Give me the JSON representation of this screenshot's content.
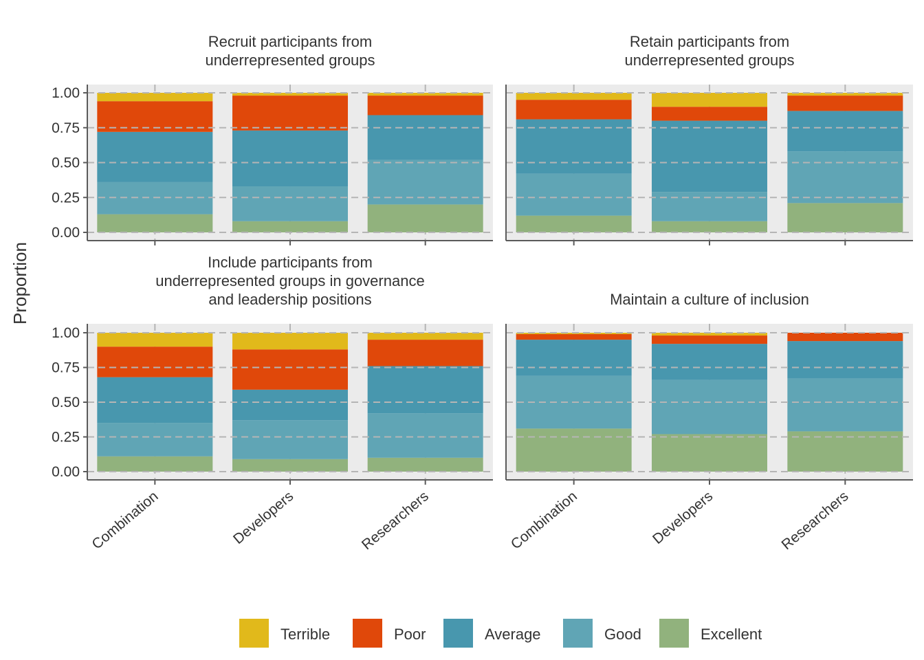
{
  "chart_data": {
    "type": "bar",
    "stacked": true,
    "ylabel": "Proportion",
    "xlabel": "",
    "ylim": [
      0,
      1
    ],
    "y_ticks": [
      "0.00",
      "0.25",
      "0.50",
      "0.75",
      "1.00"
    ],
    "categories": [
      "Combination",
      "Developers",
      "Researchers"
    ],
    "grid": true,
    "legend_position": "bottom",
    "legend": [
      {
        "name": "Terrible",
        "color": "#E1B91B"
      },
      {
        "name": "Poor",
        "color": "#E0480A"
      },
      {
        "name": "Average",
        "color": "#4897AE"
      },
      {
        "name": "Good",
        "color": "#60A5B5"
      },
      {
        "name": "Excellent",
        "color": "#91B27D"
      }
    ],
    "panels": [
      {
        "title_lines": [
          "Recruit participants from",
          "underrepresented groups"
        ],
        "series": [
          {
            "name": "Excellent",
            "values": [
              0.13,
              0.08,
              0.2
            ]
          },
          {
            "name": "Good",
            "values": [
              0.23,
              0.25,
              0.32
            ]
          },
          {
            "name": "Average",
            "values": [
              0.36,
              0.4,
              0.32
            ]
          },
          {
            "name": "Poor",
            "values": [
              0.22,
              0.25,
              0.14
            ]
          },
          {
            "name": "Terrible",
            "values": [
              0.06,
              0.02,
              0.02
            ]
          }
        ]
      },
      {
        "title_lines": [
          "Retain participants from",
          "underrepresented groups"
        ],
        "series": [
          {
            "name": "Excellent",
            "values": [
              0.12,
              0.08,
              0.21
            ]
          },
          {
            "name": "Good",
            "values": [
              0.3,
              0.21,
              0.37
            ]
          },
          {
            "name": "Average",
            "values": [
              0.39,
              0.51,
              0.29
            ]
          },
          {
            "name": "Poor",
            "values": [
              0.14,
              0.1,
              0.11
            ]
          },
          {
            "name": "Terrible",
            "values": [
              0.05,
              0.1,
              0.02
            ]
          }
        ]
      },
      {
        "title_lines": [
          "Include participants from",
          "underrepresented groups in governance",
          "and leadership positions"
        ],
        "series": [
          {
            "name": "Excellent",
            "values": [
              0.11,
              0.09,
              0.1
            ]
          },
          {
            "name": "Good",
            "values": [
              0.24,
              0.28,
              0.32
            ]
          },
          {
            "name": "Average",
            "values": [
              0.33,
              0.22,
              0.34
            ]
          },
          {
            "name": "Poor",
            "values": [
              0.22,
              0.29,
              0.19
            ]
          },
          {
            "name": "Terrible",
            "values": [
              0.1,
              0.12,
              0.05
            ]
          }
        ]
      },
      {
        "title_lines": [
          "Maintain a culture of inclusion"
        ],
        "series": [
          {
            "name": "Excellent",
            "values": [
              0.31,
              0.27,
              0.29
            ]
          },
          {
            "name": "Good",
            "values": [
              0.38,
              0.39,
              0.38
            ]
          },
          {
            "name": "Average",
            "values": [
              0.26,
              0.26,
              0.27
            ]
          },
          {
            "name": "Poor",
            "values": [
              0.04,
              0.06,
              0.06
            ]
          },
          {
            "name": "Terrible",
            "values": [
              0.01,
              0.02,
              0.0
            ]
          }
        ]
      }
    ]
  }
}
